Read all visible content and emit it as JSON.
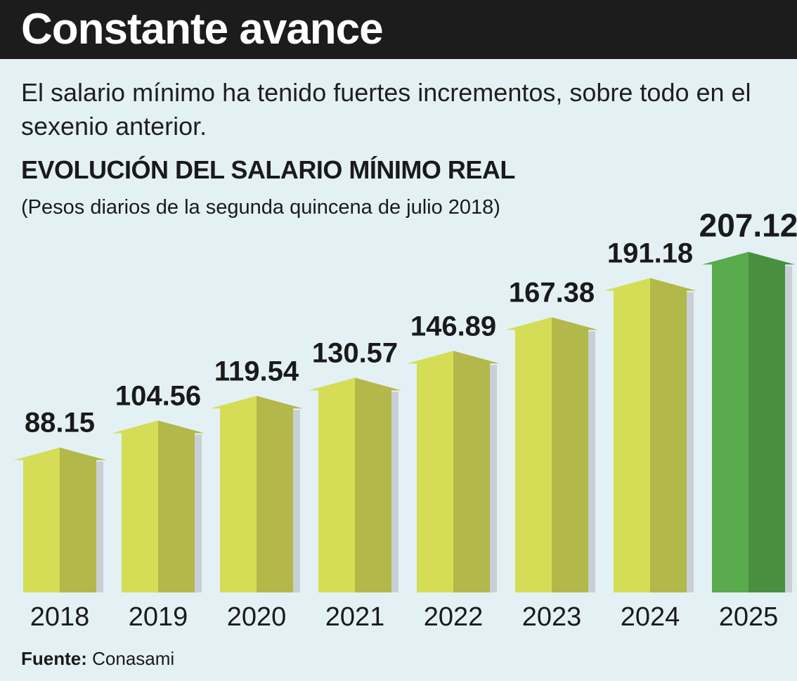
{
  "header": {
    "title": "Constante avance"
  },
  "intro": "El salario mínimo ha tenido fuertes incrementos, sobre todo en el sexenio anterior.",
  "chart_data": {
    "type": "bar",
    "title": "EVOLUCIÓN DEL SALARIO MÍNIMO REAL",
    "subtitle": "(Pesos diarios de la segunda quincena de julio 2018)",
    "categories": [
      "2018",
      "2019",
      "2020",
      "2021",
      "2022",
      "2023",
      "2024",
      "2025"
    ],
    "values": [
      88.15,
      104.56,
      119.54,
      130.57,
      146.89,
      167.38,
      191.18,
      207.12
    ],
    "value_labels": [
      "88.15",
      "104.56",
      "119.54",
      "130.57",
      "146.89",
      "167.38",
      "191.18",
      "207.12"
    ],
    "highlight_category": "2025",
    "colors": {
      "bar": "#d4dd55",
      "bar_shade": "#b3b84a",
      "highlight": "#5aaa4e",
      "highlight_shade": "#4a8f40",
      "shadow": "#c9cfd6"
    },
    "xlabel": "",
    "ylabel": ""
  },
  "source": {
    "label": "Fuente:",
    "value": "Conasami"
  }
}
